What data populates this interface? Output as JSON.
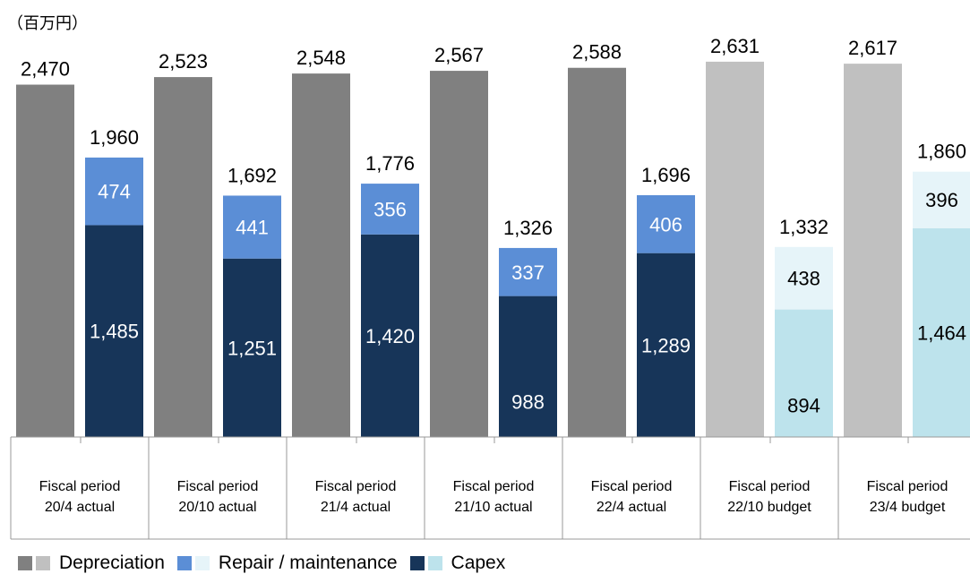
{
  "unit_label": "（百万円）",
  "legend": [
    {
      "label": "Depreciation",
      "colors": [
        "#808080",
        "#c0c0c0"
      ]
    },
    {
      "label": "Repair / maintenance",
      "colors": [
        "#5b8ed6",
        "#e6f4f9"
      ]
    },
    {
      "label": "Capex",
      "colors": [
        "#173559",
        "#bde3ec"
      ]
    }
  ],
  "colors": {
    "depreciation_actual": "#808080",
    "depreciation_budget": "#c0c0c0",
    "repair_actual": "#5b8ed6",
    "repair_budget": "#e6f4f9",
    "capex_actual": "#173559",
    "capex_budget": "#bde3ec"
  },
  "chart_data": {
    "type": "bar",
    "categories": [
      [
        "Fiscal period",
        "20/4 actual"
      ],
      [
        "Fiscal period",
        "20/10 actual"
      ],
      [
        "Fiscal period",
        "21/4 actual"
      ],
      [
        "Fiscal period",
        "21/10 actual"
      ],
      [
        "Fiscal period",
        "22/4 actual"
      ],
      [
        "Fiscal period",
        "22/10 budget"
      ],
      [
        "Fiscal period",
        "23/4 budget"
      ]
    ],
    "budget_flags": [
      false,
      false,
      false,
      false,
      false,
      true,
      true
    ],
    "depreciation": [
      "2,470",
      "2,523",
      "2,548",
      "2,567",
      "2,588",
      "2,631",
      "2,617"
    ],
    "capex_repair_total": [
      "1,960",
      "1,692",
      "1,776",
      "1,326",
      "1,696",
      "1,332",
      "1,860"
    ],
    "repair_maintenance": [
      "474",
      "441",
      "356",
      "337",
      "406",
      "438",
      "396"
    ],
    "capex": [
      "1,485",
      "1,251",
      "1,420",
      "988",
      "1,289",
      "894",
      "1,464"
    ],
    "ylim": [
      0,
      2700
    ]
  }
}
